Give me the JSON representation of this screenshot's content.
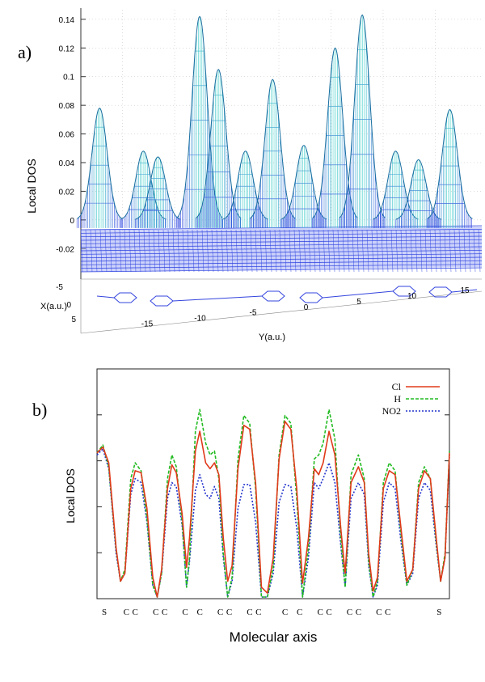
{
  "chart_data": [
    {
      "panel_label": "a)",
      "type": "surface3d",
      "ylabel": "Local DOS",
      "x_axis_label": "X(a.u.)",
      "y_axis_label": "Y(a.u.)",
      "z_ticks": [
        "0.14",
        "0.12",
        "0.1",
        "0.08",
        "0.06",
        "0.04",
        "0.02",
        "0",
        "-0.02"
      ],
      "x_ticks": [
        "-5",
        "0",
        "5"
      ],
      "y_ticks": [
        "-15",
        "-10",
        "-5",
        "0",
        "5",
        "10",
        "15"
      ],
      "z_range": [
        -0.03,
        0.145
      ],
      "y_range": [
        -19,
        19
      ],
      "peaks": [
        {
          "y": -17.2,
          "height": 0.078
        },
        {
          "y": -13.0,
          "height": 0.048
        },
        {
          "y": -11.6,
          "height": 0.044
        },
        {
          "y": -7.6,
          "height": 0.142
        },
        {
          "y": -5.8,
          "height": 0.105
        },
        {
          "y": -3.2,
          "height": 0.048
        },
        {
          "y": -0.6,
          "height": 0.098
        },
        {
          "y": 2.4,
          "height": 0.052
        },
        {
          "y": 5.4,
          "height": 0.12
        },
        {
          "y": 8.0,
          "height": 0.143
        },
        {
          "y": 11.2,
          "height": 0.048
        },
        {
          "y": 13.4,
          "height": 0.042
        },
        {
          "y": 16.4,
          "height": 0.077
        }
      ],
      "colors": {
        "base": "#2a3fe0",
        "peak": "#3fd0c8",
        "grid": "#999999"
      }
    },
    {
      "panel_label": "b)",
      "type": "line",
      "xlabel": "Molecular axis",
      "ylabel": "Local DOS",
      "x_range": [
        0,
        24
      ],
      "y_range": [
        0,
        1
      ],
      "atom_labels": [
        {
          "label": "S",
          "x": 0.5
        },
        {
          "label": "C",
          "x": 2.0
        },
        {
          "label": "C",
          "x": 2.6
        },
        {
          "label": "C",
          "x": 4.0
        },
        {
          "label": "C",
          "x": 4.6
        },
        {
          "label": "C",
          "x": 6.0
        },
        {
          "label": "C",
          "x": 7.0
        },
        {
          "label": "C",
          "x": 8.4
        },
        {
          "label": "C",
          "x": 9.0
        },
        {
          "label": "C",
          "x": 10.4
        },
        {
          "label": "C",
          "x": 11.0
        },
        {
          "label": "C",
          "x": 12.8
        },
        {
          "label": "C",
          "x": 13.8
        },
        {
          "label": "C",
          "x": 15.2
        },
        {
          "label": "C",
          "x": 15.8
        },
        {
          "label": "C",
          "x": 17.2
        },
        {
          "label": "C",
          "x": 17.8
        },
        {
          "label": "C",
          "x": 19.2
        },
        {
          "label": "C",
          "x": 19.8
        },
        {
          "label": "S",
          "x": 23.3
        }
      ],
      "series": [
        {
          "name": "Cl",
          "color": "#e03a1a",
          "dash": "",
          "points": [
            [
              0,
              0.73
            ],
            [
              0.4,
              0.76
            ],
            [
              0.8,
              0.68
            ],
            [
              1.3,
              0.25
            ],
            [
              1.6,
              0.08
            ],
            [
              1.9,
              0.12
            ],
            [
              2.3,
              0.55
            ],
            [
              2.6,
              0.64
            ],
            [
              3.0,
              0.63
            ],
            [
              3.4,
              0.45
            ],
            [
              3.8,
              0.1
            ],
            [
              4.1,
              0.0
            ],
            [
              4.4,
              0.14
            ],
            [
              4.8,
              0.55
            ],
            [
              5.1,
              0.67
            ],
            [
              5.4,
              0.63
            ],
            [
              5.8,
              0.42
            ],
            [
              6.1,
              0.15
            ],
            [
              6.3,
              0.3
            ],
            [
              6.7,
              0.74
            ],
            [
              7.0,
              0.84
            ],
            [
              7.4,
              0.68
            ],
            [
              7.7,
              0.65
            ],
            [
              8.0,
              0.68
            ],
            [
              8.3,
              0.62
            ],
            [
              8.6,
              0.3
            ],
            [
              8.9,
              0.08
            ],
            [
              9.2,
              0.16
            ],
            [
              9.6,
              0.65
            ],
            [
              10.0,
              0.87
            ],
            [
              10.4,
              0.85
            ],
            [
              10.8,
              0.58
            ],
            [
              11.2,
              0.05
            ],
            [
              11.6,
              0.02
            ],
            [
              12.0,
              0.2
            ],
            [
              12.4,
              0.7
            ],
            [
              12.8,
              0.89
            ],
            [
              13.2,
              0.85
            ],
            [
              13.6,
              0.55
            ],
            [
              14.0,
              0.07
            ],
            [
              14.4,
              0.3
            ],
            [
              14.8,
              0.65
            ],
            [
              15.1,
              0.62
            ],
            [
              15.4,
              0.68
            ],
            [
              15.8,
              0.84
            ],
            [
              16.2,
              0.72
            ],
            [
              16.6,
              0.35
            ],
            [
              16.9,
              0.12
            ],
            [
              17.3,
              0.58
            ],
            [
              17.8,
              0.66
            ],
            [
              18.2,
              0.58
            ],
            [
              18.5,
              0.22
            ],
            [
              18.8,
              0.03
            ],
            [
              19.1,
              0.1
            ],
            [
              19.5,
              0.55
            ],
            [
              19.9,
              0.64
            ],
            [
              20.3,
              0.62
            ],
            [
              20.7,
              0.35
            ],
            [
              21.1,
              0.08
            ],
            [
              21.5,
              0.14
            ],
            [
              21.9,
              0.55
            ],
            [
              22.3,
              0.64
            ],
            [
              22.7,
              0.6
            ],
            [
              23.1,
              0.3
            ],
            [
              23.4,
              0.08
            ],
            [
              23.7,
              0.2
            ],
            [
              24,
              0.73
            ]
          ]
        },
        {
          "name": "H",
          "color": "#22bb22",
          "dash": "4 2",
          "points": [
            [
              0,
              0.73
            ],
            [
              0.4,
              0.77
            ],
            [
              0.8,
              0.66
            ],
            [
              1.3,
              0.24
            ],
            [
              1.6,
              0.08
            ],
            [
              1.9,
              0.14
            ],
            [
              2.3,
              0.6
            ],
            [
              2.6,
              0.68
            ],
            [
              3.0,
              0.64
            ],
            [
              3.4,
              0.4
            ],
            [
              3.8,
              0.06
            ],
            [
              4.1,
              0.0
            ],
            [
              4.4,
              0.12
            ],
            [
              4.8,
              0.6
            ],
            [
              5.1,
              0.72
            ],
            [
              5.4,
              0.66
            ],
            [
              5.8,
              0.38
            ],
            [
              6.1,
              0.05
            ],
            [
              6.3,
              0.2
            ],
            [
              6.7,
              0.84
            ],
            [
              7.0,
              0.95
            ],
            [
              7.4,
              0.78
            ],
            [
              7.7,
              0.72
            ],
            [
              8.0,
              0.74
            ],
            [
              8.3,
              0.6
            ],
            [
              8.6,
              0.22
            ],
            [
              8.9,
              0.0
            ],
            [
              9.2,
              0.1
            ],
            [
              9.6,
              0.7
            ],
            [
              10.0,
              0.92
            ],
            [
              10.4,
              0.88
            ],
            [
              10.8,
              0.55
            ],
            [
              11.2,
              0.0
            ],
            [
              11.6,
              0.0
            ],
            [
              12.0,
              0.15
            ],
            [
              12.4,
              0.72
            ],
            [
              12.8,
              0.92
            ],
            [
              13.2,
              0.88
            ],
            [
              13.6,
              0.5
            ],
            [
              14.0,
              0.0
            ],
            [
              14.4,
              0.25
            ],
            [
              14.8,
              0.7
            ],
            [
              15.1,
              0.72
            ],
            [
              15.4,
              0.78
            ],
            [
              15.8,
              0.95
            ],
            [
              16.2,
              0.8
            ],
            [
              16.6,
              0.3
            ],
            [
              16.9,
              0.05
            ],
            [
              17.3,
              0.62
            ],
            [
              17.8,
              0.72
            ],
            [
              18.2,
              0.6
            ],
            [
              18.5,
              0.18
            ],
            [
              18.8,
              0.0
            ],
            [
              19.1,
              0.08
            ],
            [
              19.5,
              0.58
            ],
            [
              19.9,
              0.68
            ],
            [
              20.3,
              0.64
            ],
            [
              20.7,
              0.32
            ],
            [
              21.1,
              0.06
            ],
            [
              21.5,
              0.14
            ],
            [
              21.9,
              0.58
            ],
            [
              22.3,
              0.66
            ],
            [
              22.7,
              0.6
            ],
            [
              23.1,
              0.28
            ],
            [
              23.4,
              0.08
            ],
            [
              23.7,
              0.22
            ],
            [
              24,
              0.74
            ]
          ]
        },
        {
          "name": "NO2",
          "color": "#2233cc",
          "dash": "2 2",
          "points": [
            [
              0,
              0.72
            ],
            [
              0.4,
              0.75
            ],
            [
              0.8,
              0.65
            ],
            [
              1.3,
              0.22
            ],
            [
              1.6,
              0.08
            ],
            [
              1.9,
              0.12
            ],
            [
              2.3,
              0.52
            ],
            [
              2.6,
              0.6
            ],
            [
              3.0,
              0.58
            ],
            [
              3.4,
              0.38
            ],
            [
              3.8,
              0.06
            ],
            [
              4.1,
              0.0
            ],
            [
              4.4,
              0.12
            ],
            [
              4.8,
              0.5
            ],
            [
              5.1,
              0.58
            ],
            [
              5.4,
              0.56
            ],
            [
              5.8,
              0.36
            ],
            [
              6.1,
              0.05
            ],
            [
              6.3,
              0.18
            ],
            [
              6.7,
              0.54
            ],
            [
              7.0,
              0.62
            ],
            [
              7.4,
              0.52
            ],
            [
              7.7,
              0.5
            ],
            [
              8.0,
              0.56
            ],
            [
              8.3,
              0.5
            ],
            [
              8.6,
              0.2
            ],
            [
              8.9,
              0.0
            ],
            [
              9.2,
              0.08
            ],
            [
              9.6,
              0.45
            ],
            [
              10.0,
              0.57
            ],
            [
              10.4,
              0.57
            ],
            [
              10.8,
              0.38
            ],
            [
              11.2,
              0.0
            ],
            [
              11.6,
              0.0
            ],
            [
              12.0,
              0.12
            ],
            [
              12.4,
              0.48
            ],
            [
              12.8,
              0.57
            ],
            [
              13.2,
              0.56
            ],
            [
              13.6,
              0.35
            ],
            [
              14.0,
              0.0
            ],
            [
              14.4,
              0.2
            ],
            [
              14.8,
              0.58
            ],
            [
              15.1,
              0.55
            ],
            [
              15.4,
              0.6
            ],
            [
              15.8,
              0.68
            ],
            [
              16.2,
              0.58
            ],
            [
              16.6,
              0.26
            ],
            [
              16.9,
              0.05
            ],
            [
              17.3,
              0.5
            ],
            [
              17.8,
              0.58
            ],
            [
              18.2,
              0.52
            ],
            [
              18.5,
              0.16
            ],
            [
              18.8,
              0.0
            ],
            [
              19.1,
              0.06
            ],
            [
              19.5,
              0.48
            ],
            [
              19.9,
              0.58
            ],
            [
              20.3,
              0.55
            ],
            [
              20.7,
              0.28
            ],
            [
              21.1,
              0.06
            ],
            [
              21.5,
              0.12
            ],
            [
              21.9,
              0.5
            ],
            [
              22.3,
              0.58
            ],
            [
              22.7,
              0.54
            ],
            [
              23.1,
              0.26
            ],
            [
              23.4,
              0.08
            ],
            [
              23.7,
              0.2
            ],
            [
              24,
              0.72
            ]
          ]
        }
      ]
    }
  ]
}
